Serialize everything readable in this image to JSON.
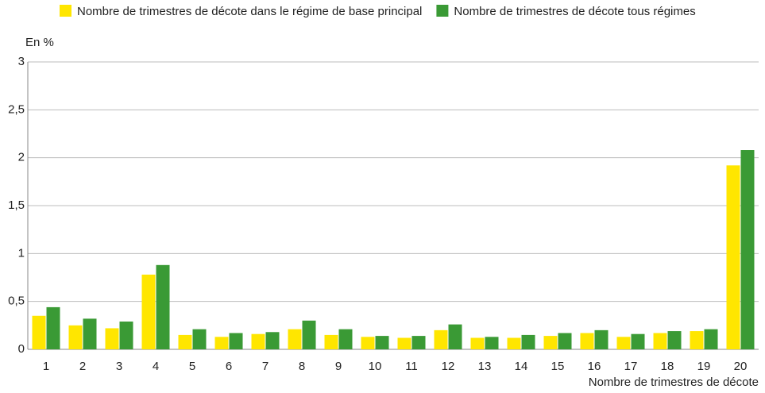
{
  "chart_data": {
    "type": "bar",
    "y_label": "En %",
    "x_label": "Nombre de trimestres de décote",
    "categories": [
      "1",
      "2",
      "3",
      "4",
      "5",
      "6",
      "7",
      "8",
      "9",
      "10",
      "11",
      "12",
      "13",
      "14",
      "15",
      "16",
      "17",
      "18",
      "19",
      "20"
    ],
    "series": [
      {
        "name": "Nombre de trimestres de décote dans le régime de base principal",
        "color": "#ffe600",
        "values": [
          0.35,
          0.25,
          0.22,
          0.78,
          0.15,
          0.13,
          0.16,
          0.21,
          0.15,
          0.13,
          0.12,
          0.2,
          0.12,
          0.12,
          0.14,
          0.17,
          0.13,
          0.17,
          0.19,
          1.92
        ]
      },
      {
        "name": "Nombre de trimestres de décote tous régimes",
        "color": "#3a9a35",
        "values": [
          0.44,
          0.32,
          0.29,
          0.88,
          0.21,
          0.17,
          0.18,
          0.3,
          0.21,
          0.14,
          0.14,
          0.26,
          0.13,
          0.15,
          0.17,
          0.2,
          0.16,
          0.19,
          0.21,
          2.08
        ]
      }
    ],
    "ylim": [
      0,
      3
    ],
    "yticks": [
      0,
      {
        "value": 0.5,
        "label": "0,5"
      },
      1,
      {
        "value": 1.5,
        "label": "1,5"
      },
      2,
      {
        "value": 2.5,
        "label": "2,5"
      },
      3
    ],
    "grid": true,
    "legend": "top"
  }
}
